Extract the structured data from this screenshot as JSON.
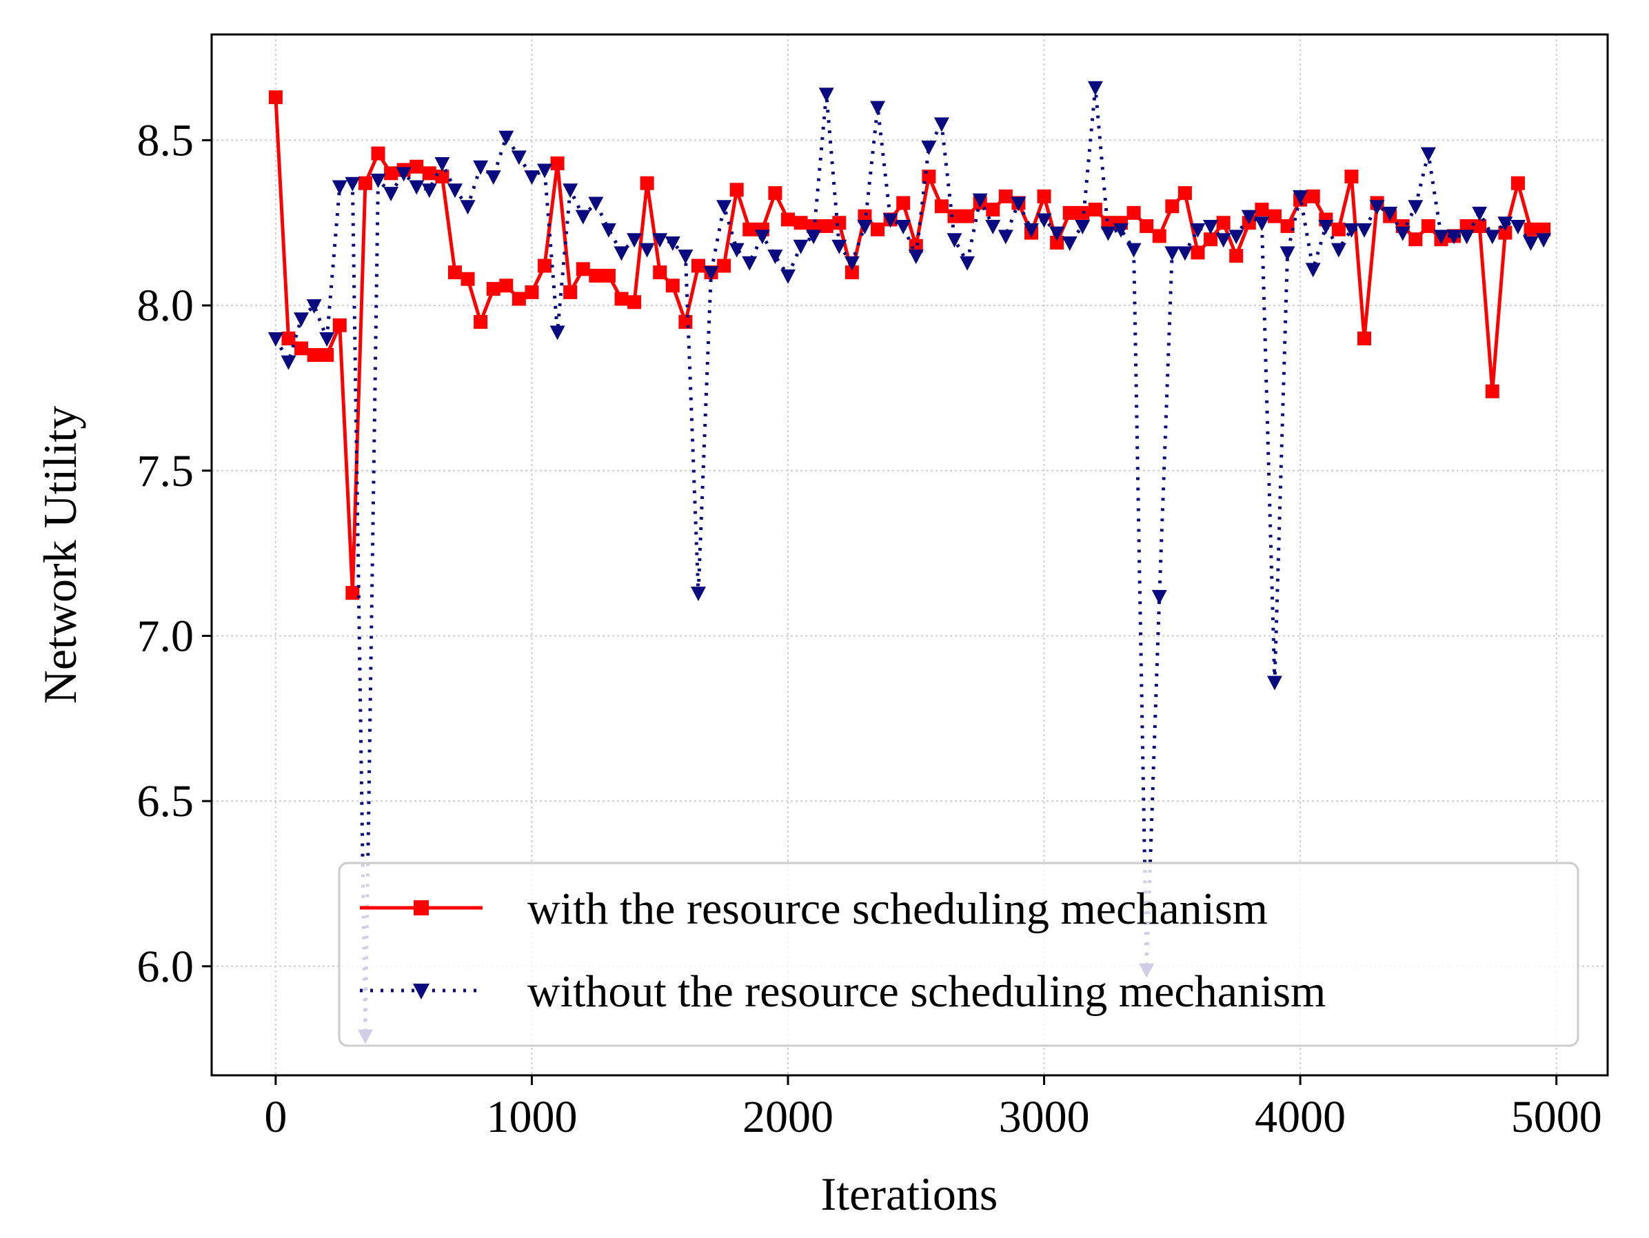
{
  "chart_data": {
    "type": "line",
    "title": "",
    "xlabel": "Iterations",
    "ylabel": "Network Utility",
    "xlim": [
      -250,
      5200
    ],
    "ylim": [
      5.67,
      8.82
    ],
    "xticks": [
      0,
      1000,
      2000,
      3000,
      4000,
      5000
    ],
    "xtick_labels": [
      "0",
      "1000",
      "2000",
      "3000",
      "4000",
      "5000"
    ],
    "yticks": [
      6.0,
      6.5,
      7.0,
      7.5,
      8.0,
      8.5
    ],
    "ytick_labels": [
      "6.0",
      "6.5",
      "7.0",
      "7.5",
      "8.0",
      "8.5"
    ],
    "grid": true,
    "legend_position": "lower-right",
    "x": [
      0,
      50,
      100,
      150,
      200,
      250,
      300,
      350,
      400,
      450,
      500,
      550,
      600,
      650,
      700,
      750,
      800,
      850,
      900,
      950,
      1000,
      1050,
      1100,
      1150,
      1200,
      1250,
      1300,
      1350,
      1400,
      1450,
      1500,
      1550,
      1600,
      1650,
      1700,
      1750,
      1800,
      1850,
      1900,
      1950,
      2000,
      2050,
      2100,
      2150,
      2200,
      2250,
      2300,
      2350,
      2400,
      2450,
      2500,
      2550,
      2600,
      2650,
      2700,
      2750,
      2800,
      2850,
      2900,
      2950,
      3000,
      3050,
      3100,
      3150,
      3200,
      3250,
      3300,
      3350,
      3400,
      3450,
      3500,
      3550,
      3600,
      3650,
      3700,
      3750,
      3800,
      3850,
      3900,
      3950,
      4000,
      4050,
      4100,
      4150,
      4200,
      4250,
      4300,
      4350,
      4400,
      4450,
      4500,
      4550,
      4600,
      4650,
      4700,
      4750,
      4800,
      4850,
      4900,
      4950
    ],
    "series": [
      {
        "name": "with the resource scheduling mechanism",
        "color": "#ff0000",
        "marker": "square",
        "line_style": "solid",
        "values": [
          8.63,
          7.9,
          7.87,
          7.85,
          7.85,
          7.94,
          7.13,
          8.37,
          8.46,
          8.4,
          8.41,
          8.42,
          8.4,
          8.39,
          8.1,
          8.08,
          7.95,
          8.05,
          8.06,
          8.02,
          8.04,
          8.12,
          8.43,
          8.04,
          8.11,
          8.09,
          8.09,
          8.02,
          8.01,
          8.37,
          8.1,
          8.06,
          7.95,
          8.12,
          8.1,
          8.12,
          8.35,
          8.23,
          8.23,
          8.34,
          8.26,
          8.25,
          8.24,
          8.24,
          8.25,
          8.1,
          8.27,
          8.23,
          8.26,
          8.31,
          8.18,
          8.39,
          8.3,
          8.27,
          8.27,
          8.31,
          8.29,
          8.33,
          8.31,
          8.22,
          8.33,
          8.19,
          8.28,
          8.28,
          8.29,
          8.25,
          8.25,
          8.28,
          8.24,
          8.21,
          8.3,
          8.34,
          8.16,
          8.2,
          8.25,
          8.15,
          8.25,
          8.29,
          8.27,
          8.24,
          8.32,
          8.33,
          8.26,
          8.23,
          8.39,
          7.9,
          8.31,
          8.27,
          8.24,
          8.2,
          8.24,
          8.2,
          8.21,
          8.24,
          8.24,
          7.74,
          8.22,
          8.37,
          8.23,
          8.23
        ]
      },
      {
        "name": "without the resource scheduling mechanism",
        "color": "#0a0a80",
        "marker": "triangle-down",
        "line_style": "dotted",
        "values": [
          7.9,
          7.83,
          7.96,
          8.0,
          7.9,
          8.36,
          8.37,
          5.79,
          8.38,
          8.34,
          8.4,
          8.36,
          8.35,
          8.43,
          8.35,
          8.3,
          8.42,
          8.39,
          8.51,
          8.45,
          8.39,
          8.41,
          7.92,
          8.35,
          8.27,
          8.31,
          8.23,
          8.16,
          8.2,
          8.17,
          8.2,
          8.19,
          8.15,
          7.13,
          8.1,
          8.3,
          8.17,
          8.13,
          8.21,
          8.15,
          8.09,
          8.18,
          8.21,
          8.64,
          8.18,
          8.13,
          8.24,
          8.6,
          8.26,
          8.24,
          8.15,
          8.48,
          8.55,
          8.2,
          8.13,
          8.32,
          8.24,
          8.21,
          8.31,
          8.23,
          8.26,
          8.22,
          8.19,
          8.24,
          8.66,
          8.22,
          8.23,
          8.17,
          5.99,
          7.12,
          8.16,
          8.16,
          8.23,
          8.24,
          8.2,
          8.21,
          8.27,
          8.25,
          6.86,
          8.16,
          8.33,
          8.11,
          8.24,
          8.17,
          8.23,
          8.23,
          8.3,
          8.28,
          8.22,
          8.3,
          8.46,
          8.21,
          8.21,
          8.21,
          8.28,
          8.21,
          8.25,
          8.24,
          8.19,
          8.2
        ]
      }
    ]
  }
}
